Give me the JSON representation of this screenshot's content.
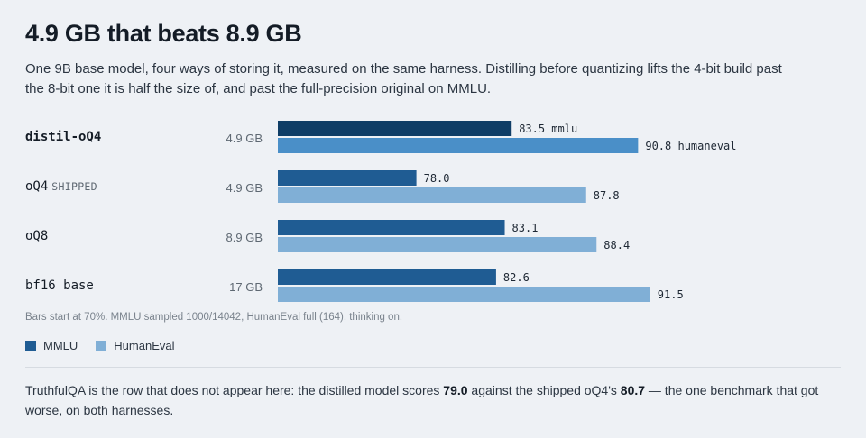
{
  "title": "4.9 GB that beats 8.9 GB",
  "subtitle": "One 9B base model, four ways of storing it, measured on the same harness. Distilling before quantizing lifts the 4-bit build past the 8-bit one it is half the size of, and past the full-precision original on MMLU.",
  "rows": [
    {
      "name": "distil-oQ4",
      "tag": "",
      "size": "4.9 GB",
      "bold": true
    },
    {
      "name": "oQ4",
      "tag": "SHIPPED",
      "size": "4.9 GB",
      "bold": false
    },
    {
      "name": "oQ8",
      "tag": "",
      "size": "8.9 GB",
      "bold": false
    },
    {
      "name": "bf16 base",
      "tag": "",
      "size": "17 GB",
      "bold": false
    }
  ],
  "chart_data": {
    "type": "bar",
    "orientation": "horizontal",
    "categories": [
      "distil-oQ4",
      "oQ4",
      "oQ8",
      "bf16 base"
    ],
    "series": [
      {
        "name": "MMLU",
        "values": [
          83.5,
          78.0,
          83.1,
          82.6
        ],
        "value_labels": [
          "83.5 mmlu",
          "78.0",
          "83.1",
          "82.6"
        ],
        "colors": [
          "#0f3d66",
          "#1f5c93",
          "#1f5c93",
          "#1f5c93"
        ]
      },
      {
        "name": "HumanEval",
        "values": [
          90.8,
          87.8,
          88.4,
          91.5
        ],
        "value_labels": [
          "90.8 humaneval",
          "87.8",
          "88.4",
          "91.5"
        ],
        "colors": [
          "#4a8fc8",
          "#80afd6",
          "#80afd6",
          "#80afd6"
        ]
      }
    ],
    "xlim": [
      70,
      100
    ],
    "grid": false,
    "legend_position": "bottom-left"
  },
  "note": "Bars start at 70%. MMLU sampled 1000/14042, HumanEval full (164), thinking on.",
  "legend": [
    {
      "label": "MMLU",
      "color": "#1f5c93"
    },
    {
      "label": "HumanEval",
      "color": "#80afd6"
    }
  ],
  "footer": {
    "text_1": "TruthfulQA is the row that does not appear here: the distilled model scores ",
    "value_1": "79.0",
    "text_2": " against the shipped oQ4's ",
    "value_2": "80.7",
    "text_3": " — the one benchmark that got worse, on both harnesses."
  }
}
